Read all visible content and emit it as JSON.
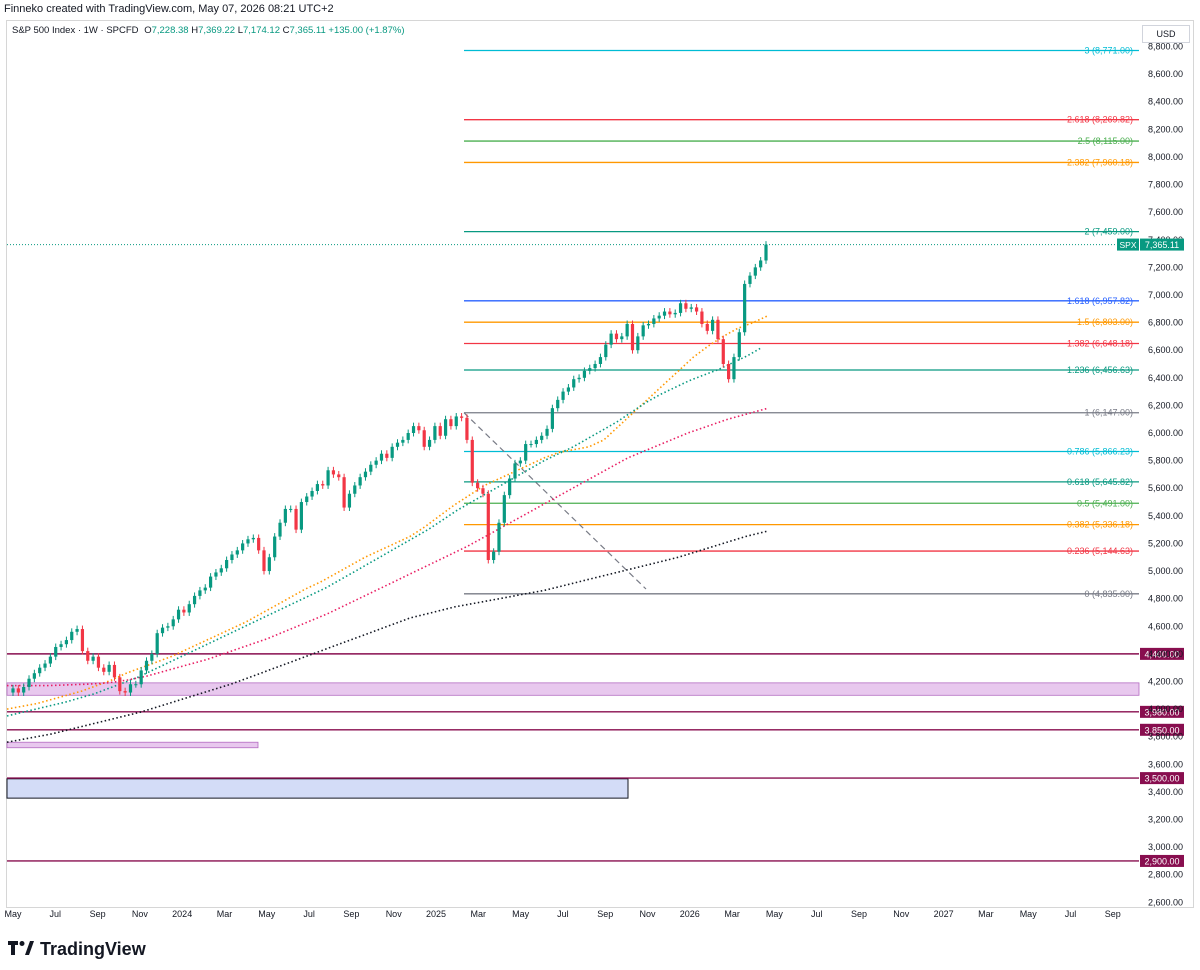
{
  "header": {
    "credit": "Finneko created with TradingView.com, May 07, 2026 08:21 UTC+2",
    "symbol_title": "S&P 500 Index · 1W · SPCFD",
    "o_label": "O",
    "o_value": "7,228.38",
    "h_label": "H",
    "h_value": "7,369.22",
    "l_label": "L",
    "l_value": "7,174.12",
    "c_label": "C",
    "c_value": "7,365.11",
    "change": "+135.00 (+1.87%)"
  },
  "currency": "USD",
  "brand": {
    "text": "TradingView"
  },
  "chart_data": {
    "type": "candlestick",
    "symbol": "SPX",
    "last_price": "7,365.11",
    "price_axis": {
      "ticks": [
        "8,800.00",
        "8,600.00",
        "8,400.00",
        "8,200.00",
        "8,000.00",
        "7,800.00",
        "7,600.00",
        "7,400.00",
        "7,200.00",
        "7,000.00",
        "6,800.00",
        "6,600.00",
        "6,400.00",
        "6,200.00",
        "6,000.00",
        "5,800.00",
        "5,600.00",
        "5,400.00",
        "5,200.00",
        "5,000.00",
        "4,800.00",
        "4,600.00",
        "4,400.00",
        "4,200.00",
        "4,000.00",
        "3,800.00",
        "3,600.00",
        "3,400.00",
        "3,200.00",
        "3,000.00",
        "2,800.00",
        "2,600.00"
      ],
      "tick_values": [
        8800,
        8600,
        8400,
        8200,
        8000,
        7800,
        7600,
        7400,
        7200,
        7000,
        6800,
        6600,
        6400,
        6200,
        6000,
        5800,
        5600,
        5400,
        5200,
        5000,
        4800,
        4600,
        4400,
        4200,
        4000,
        3800,
        3600,
        3400,
        3200,
        3000,
        2800,
        2600
      ]
    },
    "time_axis": [
      "May",
      "Jul",
      "Sep",
      "Nov",
      "2024",
      "Mar",
      "May",
      "Jul",
      "Sep",
      "Nov",
      "2025",
      "Mar",
      "May",
      "Jul",
      "Sep",
      "Nov",
      "2026",
      "Mar",
      "May",
      "Jul",
      "Sep",
      "Nov",
      "2027",
      "Mar",
      "May",
      "Jul",
      "Sep"
    ],
    "fib_levels": [
      {
        "ratio": "3",
        "value": 8771.0,
        "label": "3 (8,771.00)",
        "color": "#00bcd4"
      },
      {
        "ratio": "2.618",
        "value": 8269.82,
        "label": "2.618 (8,269.82)",
        "color": "#f23645"
      },
      {
        "ratio": "2.5",
        "value": 8115.0,
        "label": "2.5 (8,115.00)",
        "color": "#4caf50"
      },
      {
        "ratio": "2.382",
        "value": 7960.18,
        "label": "2.382 (7,960.18)",
        "color": "#ff9800"
      },
      {
        "ratio": "2",
        "value": 7459.0,
        "label": "2 (7,459.00)",
        "color": "#089981"
      },
      {
        "ratio": "1.618",
        "value": 6957.82,
        "label": "1.618 (6,957.82)",
        "color": "#2962ff"
      },
      {
        "ratio": "1.5",
        "value": 6803.0,
        "label": "1.5 (6,803.00)",
        "color": "#ff9800"
      },
      {
        "ratio": "1.382",
        "value": 6648.18,
        "label": "1.382 (6,648.18)",
        "color": "#f23645"
      },
      {
        "ratio": "1.236",
        "value": 6456.63,
        "label": "1.236 (6,456.63)",
        "color": "#089981"
      },
      {
        "ratio": "1",
        "value": 6147.0,
        "label": "1 (6,147.00)",
        "color": "#787b86"
      },
      {
        "ratio": "0.786",
        "value": 5866.23,
        "label": "0.786 (5,866.23)",
        "color": "#00bcd4"
      },
      {
        "ratio": "0.618",
        "value": 5645.82,
        "label": "0.618 (5,645.82)",
        "color": "#089981"
      },
      {
        "ratio": "0.5",
        "value": 5491.0,
        "label": "0.5 (5,491.00)",
        "color": "#4caf50"
      },
      {
        "ratio": "0.382",
        "value": 5336.18,
        "label": "0.382 (5,336.18)",
        "color": "#ff9800"
      },
      {
        "ratio": "0.236",
        "value": 5144.63,
        "label": "0.236 (5,144.63)",
        "color": "#f23645"
      },
      {
        "ratio": "0",
        "value": 4835.0,
        "label": "0 (4,835.00)",
        "color": "#787b86"
      }
    ],
    "horizontal_levels": [
      {
        "value": 4400,
        "label": "4,400.00"
      },
      {
        "value": 3980,
        "label": "3,980.00"
      },
      {
        "value": 3850,
        "label": "3,850.00"
      },
      {
        "value": 3500,
        "label": "3,500.00"
      },
      {
        "value": 2900,
        "label": "2,900.00"
      }
    ],
    "zones": [
      {
        "from": 4100,
        "to": 4190,
        "color": "#e8c8ee"
      },
      {
        "from": 3720,
        "to": 3760,
        "color": "#e8c8ee"
      },
      {
        "from": 3355,
        "to": 3495,
        "color": "#d3dcf7"
      }
    ],
    "closes": [
      4150,
      4120,
      4160,
      4220,
      4260,
      4300,
      4330,
      4380,
      4450,
      4470,
      4500,
      4560,
      4580,
      4420,
      4350,
      4380,
      4300,
      4270,
      4320,
      4230,
      4130,
      4120,
      4180,
      4180,
      4280,
      4350,
      4400,
      4550,
      4590,
      4600,
      4650,
      4720,
      4700,
      4760,
      4820,
      4860,
      4880,
      4960,
      4990,
      5020,
      5080,
      5120,
      5150,
      5200,
      5230,
      5240,
      5150,
      5000,
      5100,
      5250,
      5350,
      5450,
      5450,
      5300,
      5500,
      5540,
      5580,
      5630,
      5620,
      5730,
      5700,
      5680,
      5460,
      5560,
      5620,
      5680,
      5720,
      5770,
      5800,
      5850,
      5820,
      5900,
      5930,
      5950,
      6000,
      6050,
      6020,
      5900,
      5950,
      6050,
      5980,
      6100,
      6050,
      6120,
      6110,
      5950,
      5640,
      5600,
      5560,
      5080,
      5140,
      5350,
      5550,
      5670,
      5780,
      5800,
      5920,
      5920,
      5950,
      5980,
      6030,
      6180,
      6240,
      6300,
      6330,
      6390,
      6400,
      6450,
      6470,
      6500,
      6550,
      6640,
      6720,
      6680,
      6700,
      6790,
      6600,
      6700,
      6780,
      6790,
      6830,
      6850,
      6880,
      6860,
      6870,
      6940,
      6900,
      6910,
      6880,
      6790,
      6740,
      6820,
      6680,
      6500,
      6390,
      6550,
      6730,
      7080,
      7140,
      7200,
      7250,
      7365
    ],
    "ema_fast": [
      4000,
      4020,
      4040,
      4070,
      4100,
      4130,
      4170,
      4210,
      4260,
      4300,
      4340,
      4380,
      4430,
      4480,
      4530,
      4580,
      4630,
      4690,
      4750,
      4810,
      4870,
      4920,
      4980,
      5040,
      5100,
      5150,
      5200,
      5250,
      5320,
      5400,
      5480,
      5550,
      5620,
      5670,
      5720,
      5770,
      5820,
      5860,
      5880,
      5900,
      5950,
      6050,
      6150,
      6250,
      6350,
      6450,
      6550,
      6630,
      6700,
      6760,
      6800,
      6850
    ],
    "ema_mid": [
      3950,
      3975,
      4000,
      4025,
      4050,
      4080,
      4110,
      4150,
      4190,
      4230,
      4280,
      4330,
      4380,
      4430,
      4480,
      4530,
      4580,
      4630,
      4680,
      4730,
      4780,
      4830,
      4880,
      4940,
      5000,
      5060,
      5120,
      5180,
      5240,
      5300,
      5370,
      5440,
      5500,
      5560,
      5620,
      5680,
      5740,
      5800,
      5850,
      5900,
      5960,
      6020,
      6080,
      6150,
      6220,
      6280,
      6330,
      6380,
      6420,
      6460,
      6510,
      6560,
      6620
    ],
    "ema_slow": [
      4170,
      4170,
      4170,
      4175,
      4180,
      4190,
      4210,
      4240,
      4280,
      4320,
      4360,
      4410,
      4460,
      4510,
      4570,
      4630,
      4690,
      4760,
      4830,
      4900,
      4970,
      5040,
      5110,
      5180,
      5260,
      5340,
      5420,
      5500,
      5580,
      5660,
      5740,
      5820,
      5880,
      5940,
      6000,
      6050,
      6100,
      6140,
      6180
    ],
    "ema_long": [
      3760,
      3790,
      3820,
      3860,
      3900,
      3940,
      3980,
      4030,
      4080,
      4130,
      4180,
      4240,
      4300,
      4360,
      4420,
      4480,
      4540,
      4600,
      4660,
      4700,
      4740,
      4770,
      4800,
      4830,
      4860,
      4900,
      4940,
      4980,
      5020,
      5060,
      5100,
      5150,
      5200,
      5250,
      5290
    ]
  }
}
